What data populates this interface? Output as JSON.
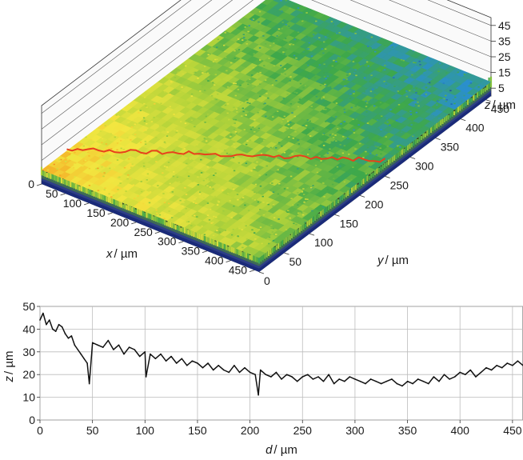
{
  "chart_data": [
    {
      "type": "surface",
      "x_axis": {
        "label_var": "x",
        "label_unit": "/ µm",
        "ticks": [
          0,
          50,
          100,
          150,
          200,
          250,
          300,
          350,
          400,
          450
        ],
        "range": [
          0,
          460
        ]
      },
      "y_axis": {
        "label_var": "y",
        "label_unit": "/ µm",
        "ticks": [
          0,
          50,
          100,
          150,
          200,
          250,
          300,
          350,
          400,
          450
        ],
        "range": [
          0,
          460
        ]
      },
      "z_axis": {
        "label_var": "z",
        "label_unit": "/ µm",
        "ticks": [
          5,
          15,
          25,
          35,
          45
        ],
        "range": [
          0,
          50
        ]
      },
      "colormap": [
        "#1a2a7a",
        "#2a8fd0",
        "#3ea84a",
        "#b5d43a",
        "#f2e640",
        "#f5a623",
        "#e8401c"
      ],
      "profile_line_color": "#e8401c",
      "profile_line": {
        "from": {
          "x": 0,
          "y": 50
        },
        "to": {
          "x": 460,
          "y": 250
        }
      }
    },
    {
      "type": "line",
      "xlabel_var": "d",
      "xlabel_unit": "/ µm",
      "ylabel_var": "z",
      "ylabel_unit": "/ µm",
      "xlim": [
        0,
        460
      ],
      "ylim": [
        0,
        50
      ],
      "xticks": [
        0,
        50,
        100,
        150,
        200,
        250,
        300,
        350,
        400,
        450
      ],
      "yticks": [
        0,
        10,
        20,
        30,
        40,
        50
      ],
      "grid": true,
      "line_color": "#111111",
      "series": [
        {
          "x": [
            0,
            3,
            6,
            9,
            12,
            15,
            18,
            21,
            24,
            27,
            30,
            33,
            36,
            39,
            42,
            45,
            47,
            50,
            55,
            60,
            65,
            70,
            75,
            80,
            85,
            90,
            95,
            100,
            101,
            105,
            110,
            115,
            120,
            125,
            130,
            135,
            140,
            145,
            150,
            155,
            160,
            165,
            170,
            175,
            180,
            185,
            190,
            195,
            200,
            205,
            208,
            210,
            215,
            220,
            225,
            230,
            235,
            240,
            245,
            250,
            255,
            260,
            265,
            270,
            275,
            280,
            285,
            290,
            295,
            300,
            305,
            310,
            315,
            320,
            325,
            330,
            335,
            340,
            345,
            350,
            355,
            360,
            365,
            370,
            375,
            380,
            385,
            390,
            395,
            400,
            405,
            410,
            415,
            420,
            425,
            430,
            435,
            440,
            445,
            450,
            455,
            460
          ],
          "y": [
            44,
            47,
            42,
            44,
            40,
            39,
            42,
            41,
            38,
            36,
            37,
            33,
            31,
            29,
            27,
            25,
            16,
            34,
            33,
            32,
            35,
            31,
            33,
            29,
            32,
            31,
            28,
            30,
            19,
            29,
            27,
            29,
            26,
            28,
            25,
            27,
            24,
            26,
            25,
            23,
            25,
            22,
            24,
            22,
            21,
            24,
            21,
            23,
            21,
            20,
            11,
            22,
            20,
            19,
            21,
            18,
            20,
            19,
            17,
            19,
            20,
            18,
            19,
            17,
            20,
            16,
            18,
            17,
            19,
            18,
            17,
            16,
            18,
            17,
            16,
            17,
            18,
            16,
            15,
            17,
            16,
            18,
            17,
            16,
            19,
            17,
            20,
            18,
            19,
            21,
            20,
            22,
            19,
            21,
            23,
            22,
            24,
            23,
            25,
            24,
            26,
            24
          ]
        }
      ]
    }
  ]
}
